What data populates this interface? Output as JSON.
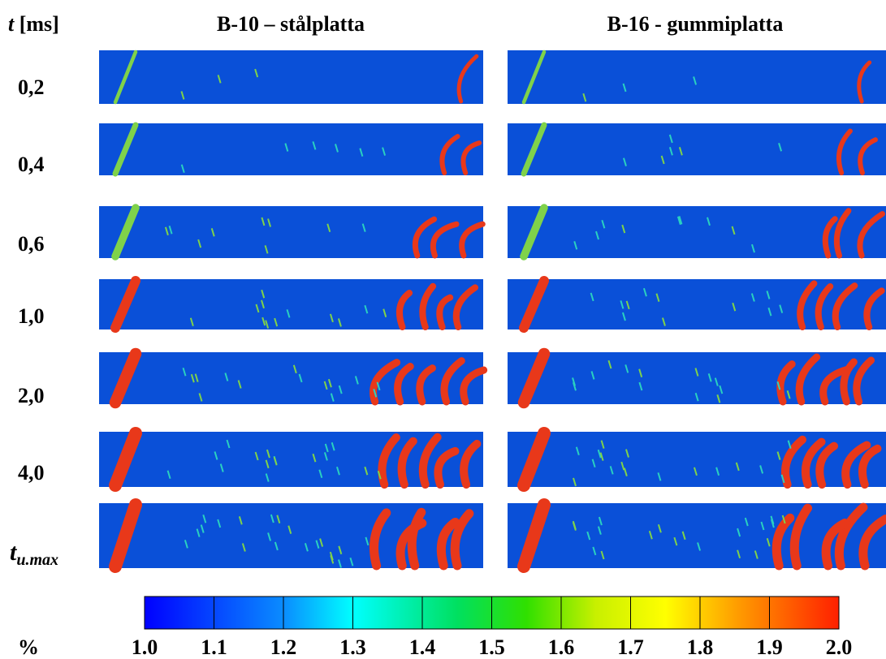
{
  "header": {
    "time_symbol": "t",
    "time_unit": "[ms]"
  },
  "columns": [
    "B-10 – stålplatta",
    "B-16 - gummiplatta"
  ],
  "rows": [
    "0,2",
    "0,4",
    "0,6",
    "1,0",
    "2,0",
    "4,0"
  ],
  "last_row": {
    "symbol": "t",
    "subscript": "u.max"
  },
  "colorbar": {
    "unit": "%",
    "ticks": [
      "1.0",
      "1.1",
      "1.2",
      "1.3",
      "1.4",
      "1.5",
      "1.6",
      "1.7",
      "1.8",
      "1.9",
      "2.0"
    ]
  }
}
